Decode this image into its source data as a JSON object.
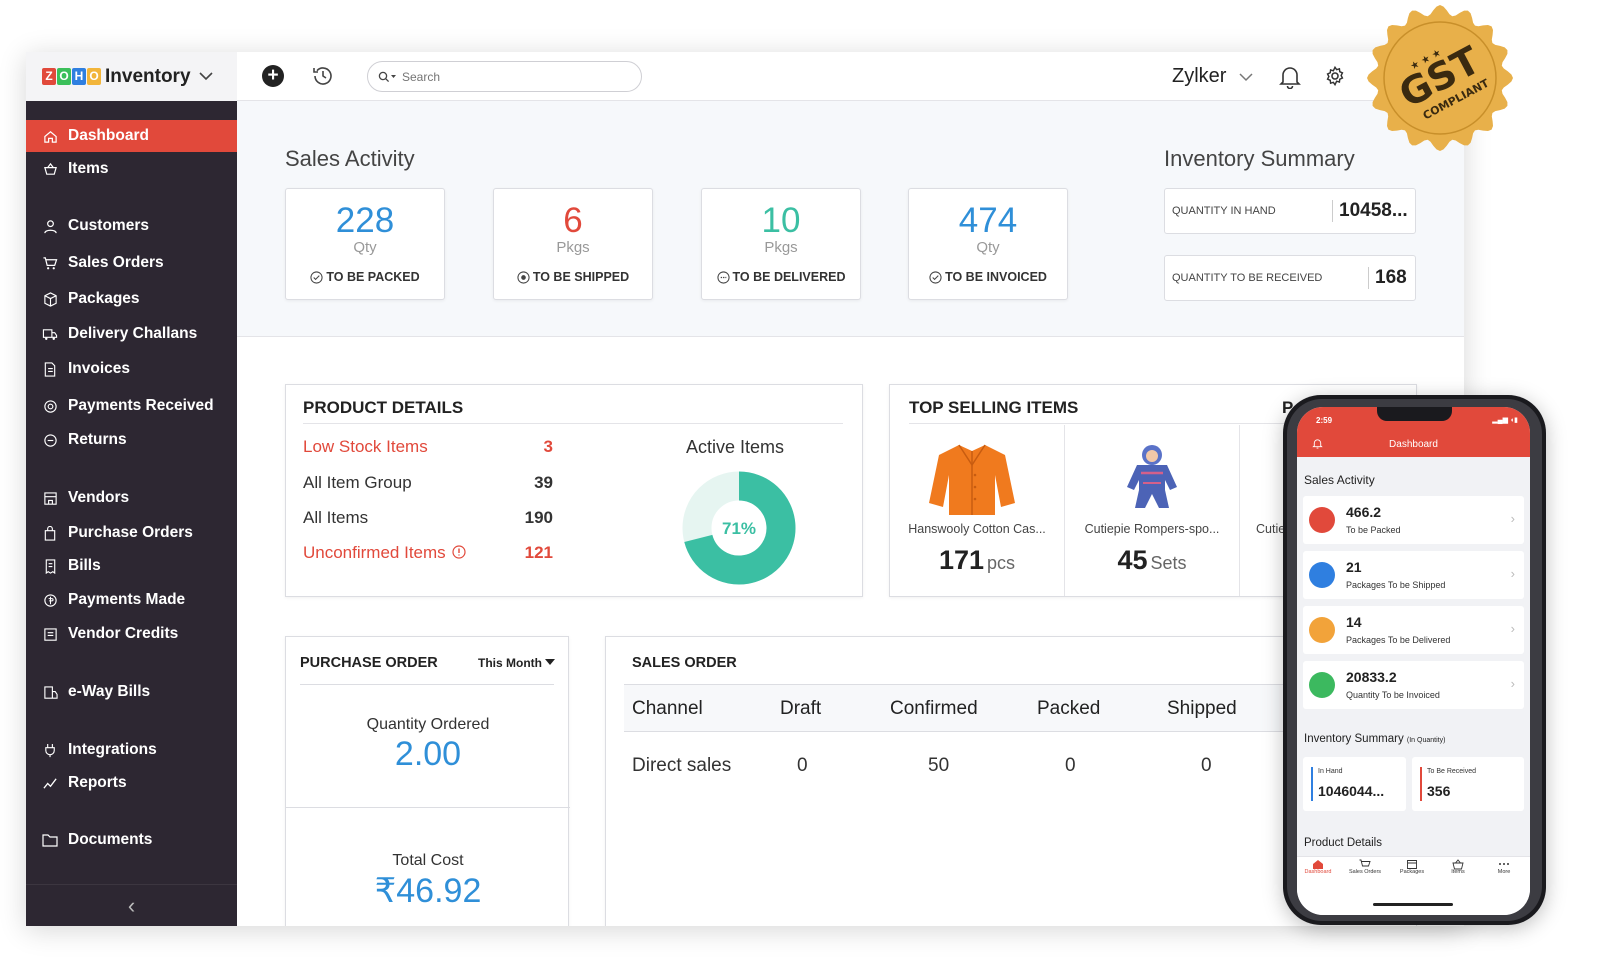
{
  "brand": {
    "name": "Inventory",
    "logo_letters": [
      "Z",
      "O",
      "H",
      "O"
    ]
  },
  "sidebar": {
    "items": [
      {
        "label": "Dashboard",
        "icon": "home-icon"
      },
      {
        "label": "Items",
        "icon": "basket-icon"
      },
      {
        "label": "Customers",
        "icon": "user-icon"
      },
      {
        "label": "Sales Orders",
        "icon": "cart-icon"
      },
      {
        "label": "Packages",
        "icon": "box-icon"
      },
      {
        "label": "Delivery Challans",
        "icon": "truck-icon"
      },
      {
        "label": "Invoices",
        "icon": "document-icon"
      },
      {
        "label": "Payments Received",
        "icon": "coin-icon"
      },
      {
        "label": "Returns",
        "icon": "return-icon"
      },
      {
        "label": "Vendors",
        "icon": "store-icon"
      },
      {
        "label": "Purchase Orders",
        "icon": "bag-icon"
      },
      {
        "label": "Bills",
        "icon": "bill-icon"
      },
      {
        "label": "Payments Made",
        "icon": "payment-icon"
      },
      {
        "label": "Vendor Credits",
        "icon": "credit-icon"
      },
      {
        "label": "e-Way Bills",
        "icon": "eway-icon"
      },
      {
        "label": "Integrations",
        "icon": "plug-icon"
      },
      {
        "label": "Reports",
        "icon": "chart-icon"
      },
      {
        "label": "Documents",
        "icon": "folder-icon"
      }
    ],
    "collapse_label": "‹"
  },
  "topbar": {
    "search_placeholder": "Search",
    "org_name": "Zylker"
  },
  "sales_activity": {
    "title": "Sales Activity",
    "cards": [
      {
        "value": "228",
        "unit": "Qty",
        "label": "TO BE PACKED",
        "color": "#2f8fd8"
      },
      {
        "value": "6",
        "unit": "Pkgs",
        "label": "TO BE SHIPPED",
        "color": "#e1493b"
      },
      {
        "value": "10",
        "unit": "Pkgs",
        "label": "TO BE DELIVERED",
        "color": "#3bbfa3"
      },
      {
        "value": "474",
        "unit": "Qty",
        "label": "TO BE INVOICED",
        "color": "#2f8fd8"
      }
    ]
  },
  "inventory_summary": {
    "title": "Inventory Summary",
    "rows": [
      {
        "label": "QUANTITY IN HAND",
        "value": "10458..."
      },
      {
        "label": "QUANTITY TO BE RECEIVED",
        "value": "168"
      }
    ]
  },
  "product_details": {
    "title": "PRODUCT DETAILS",
    "rows": [
      {
        "label": "Low Stock Items",
        "value": "3",
        "highlight": true
      },
      {
        "label": "All Item Group",
        "value": "39",
        "highlight": false
      },
      {
        "label": "All Items",
        "value": "190",
        "highlight": false
      },
      {
        "label": "Unconfirmed Items",
        "value": "121",
        "highlight": true
      }
    ],
    "active_items_title": "Active Items",
    "active_pct": 71,
    "active_pct_label": "71%"
  },
  "top_selling": {
    "title": "TOP SELLING ITEMS",
    "period_partial": "P",
    "items": [
      {
        "name": "Hanswooly Cotton Cas...",
        "qty": "171",
        "unit": "pcs"
      },
      {
        "name": "Cutiepie Rompers-spo...",
        "qty": "45",
        "unit": "Sets"
      },
      {
        "name": "Cutie",
        "qty": "",
        "unit": ""
      }
    ]
  },
  "purchase_order": {
    "title": "PURCHASE ORDER",
    "period": "This Month",
    "qty_label": "Quantity Ordered",
    "qty_value": "2.00",
    "cost_label": "Total Cost",
    "cost_value": "₹46.92"
  },
  "sales_order": {
    "title": "SALES ORDER",
    "headers": [
      "Channel",
      "Draft",
      "Confirmed",
      "Packed",
      "Shipped"
    ],
    "rows": [
      [
        "Direct sales",
        "0",
        "50",
        "0",
        "0"
      ]
    ]
  },
  "gst_badge": {
    "main": "GST",
    "sub": "COMPLIANT",
    "stars": "★ ★ ★",
    "color": "#e8b04a"
  },
  "mobile": {
    "time": "2:59",
    "title": "Dashboard",
    "sales_activity_title": "Sales Activity",
    "cards": [
      {
        "value": "466.2",
        "label": "To be Packed",
        "color": "#e1493b"
      },
      {
        "value": "21",
        "label": "Packages To be Shipped",
        "color": "#2f7fe0"
      },
      {
        "value": "14",
        "label": "Packages To be Delivered",
        "color": "#f2a33a"
      },
      {
        "value": "20833.2",
        "label": "Quantity To be Invoiced",
        "color": "#3cb95f"
      }
    ],
    "inventory_title": "Inventory Summary",
    "inventory_sub": "(In Quantity)",
    "in_hand_label": "In Hand",
    "in_hand_value": "1046044...",
    "to_receive_label": "To Be Received",
    "to_receive_value": "356",
    "product_details_title": "Product Details",
    "tabs": [
      "Dashboard",
      "Sales Orders",
      "Packages",
      "Items",
      "More"
    ]
  }
}
